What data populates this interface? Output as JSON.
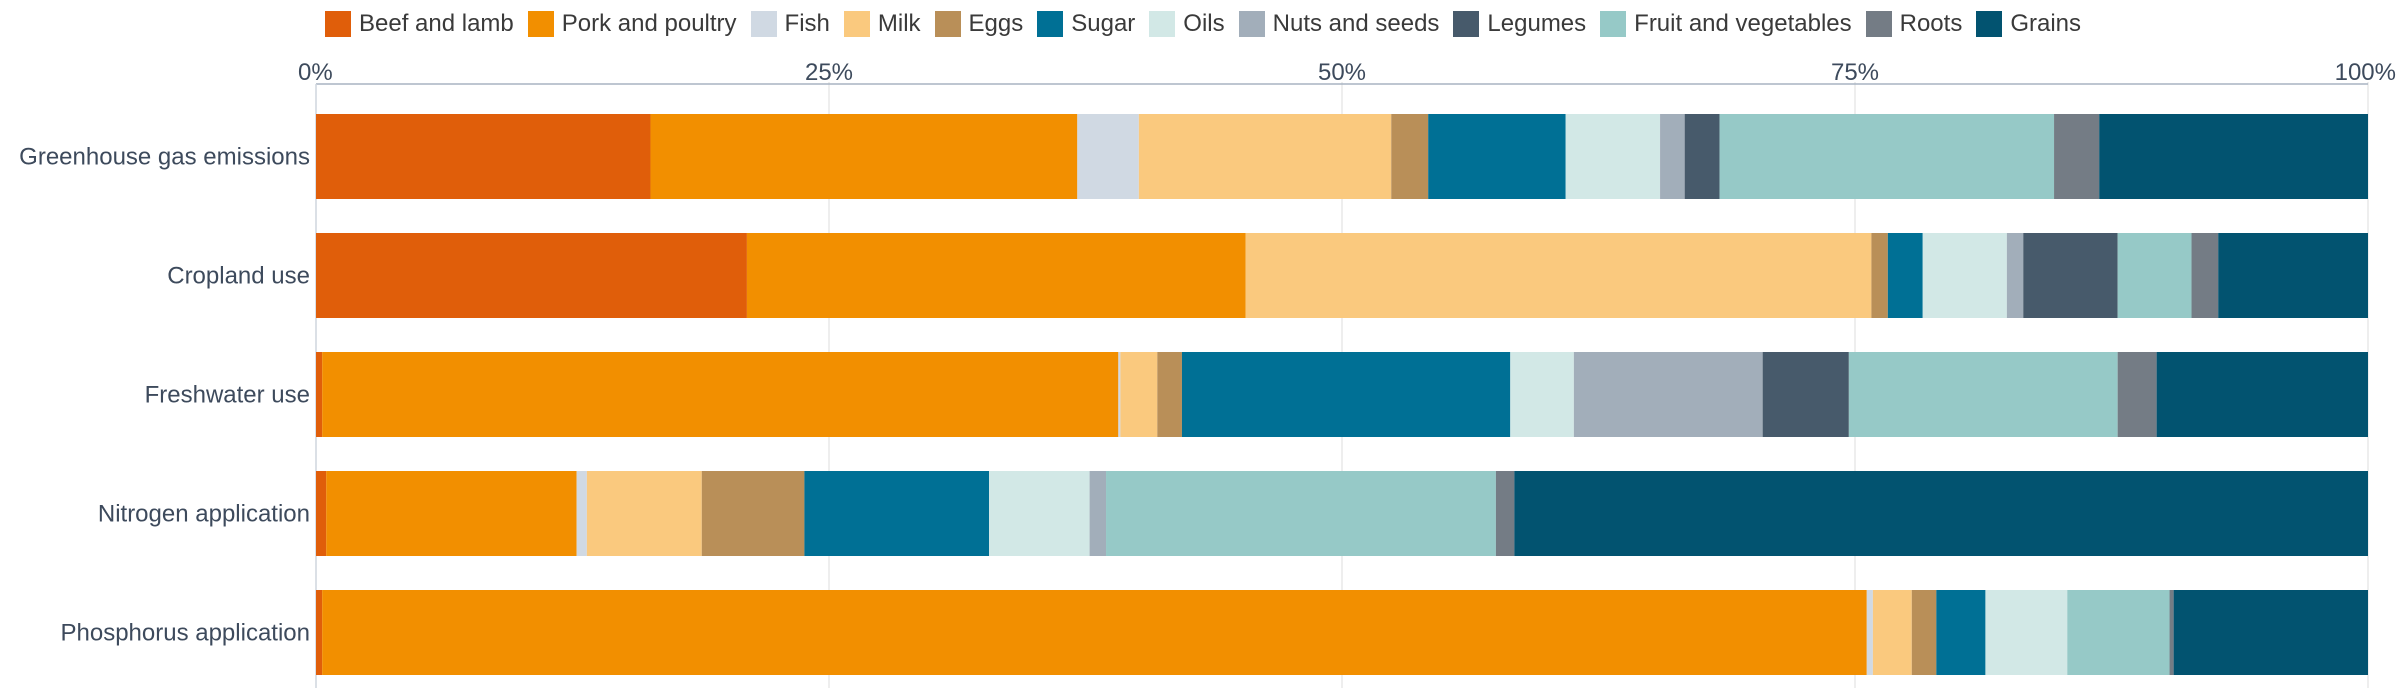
{
  "chart_data": {
    "type": "bar",
    "orientation": "horizontal",
    "stacked": true,
    "normalized": true,
    "legend_position": "top",
    "grid": true,
    "xlim": [
      0,
      100
    ],
    "x_ticks": [
      "0%",
      "25%",
      "50%",
      "75%",
      "100%"
    ],
    "categories": [
      "Greenhouse gas emissions",
      "Cropland use",
      "Freshwater use",
      "Nitrogen application",
      "Phosphorus application"
    ],
    "series": [
      {
        "name": "Beef and lamb",
        "color": "#e05e0a",
        "values": [
          16.3,
          21.0,
          0.3,
          0.5,
          0.3
        ]
      },
      {
        "name": "Pork and poultry",
        "color": "#f28f00",
        "values": [
          20.8,
          24.3,
          38.8,
          12.2,
          75.5
        ]
      },
      {
        "name": "Fish",
        "color": "#d0d9e3",
        "values": [
          3.0,
          0.0,
          0.1,
          0.5,
          0.3
        ]
      },
      {
        "name": "Milk",
        "color": "#fac97e",
        "values": [
          12.3,
          30.5,
          1.8,
          5.6,
          1.9
        ]
      },
      {
        "name": "Eggs",
        "color": "#b98f58",
        "values": [
          1.8,
          0.8,
          1.2,
          5.0,
          1.2
        ]
      },
      {
        "name": "Sugar",
        "color": "#007095",
        "values": [
          6.7,
          1.7,
          16.0,
          9.0,
          2.4
        ]
      },
      {
        "name": "Oils",
        "color": "#d2e8e6",
        "values": [
          4.6,
          4.1,
          3.1,
          4.9,
          4.0
        ]
      },
      {
        "name": "Nuts and seeds",
        "color": "#a2aeba",
        "values": [
          1.2,
          0.8,
          9.2,
          0.8,
          0.0
        ]
      },
      {
        "name": "Legumes",
        "color": "#475a6b",
        "values": [
          1.7,
          4.6,
          4.2,
          0.0,
          0.0
        ]
      },
      {
        "name": "Fruit and vegetables",
        "color": "#96c9c7",
        "values": [
          16.3,
          3.6,
          13.1,
          19.0,
          5.0
        ]
      },
      {
        "name": "Roots",
        "color": "#747c85",
        "values": [
          2.2,
          1.3,
          1.9,
          0.9,
          0.2
        ]
      },
      {
        "name": "Grains",
        "color": "#025370",
        "values": [
          13.1,
          7.3,
          10.3,
          41.6,
          9.5
        ]
      }
    ]
  }
}
